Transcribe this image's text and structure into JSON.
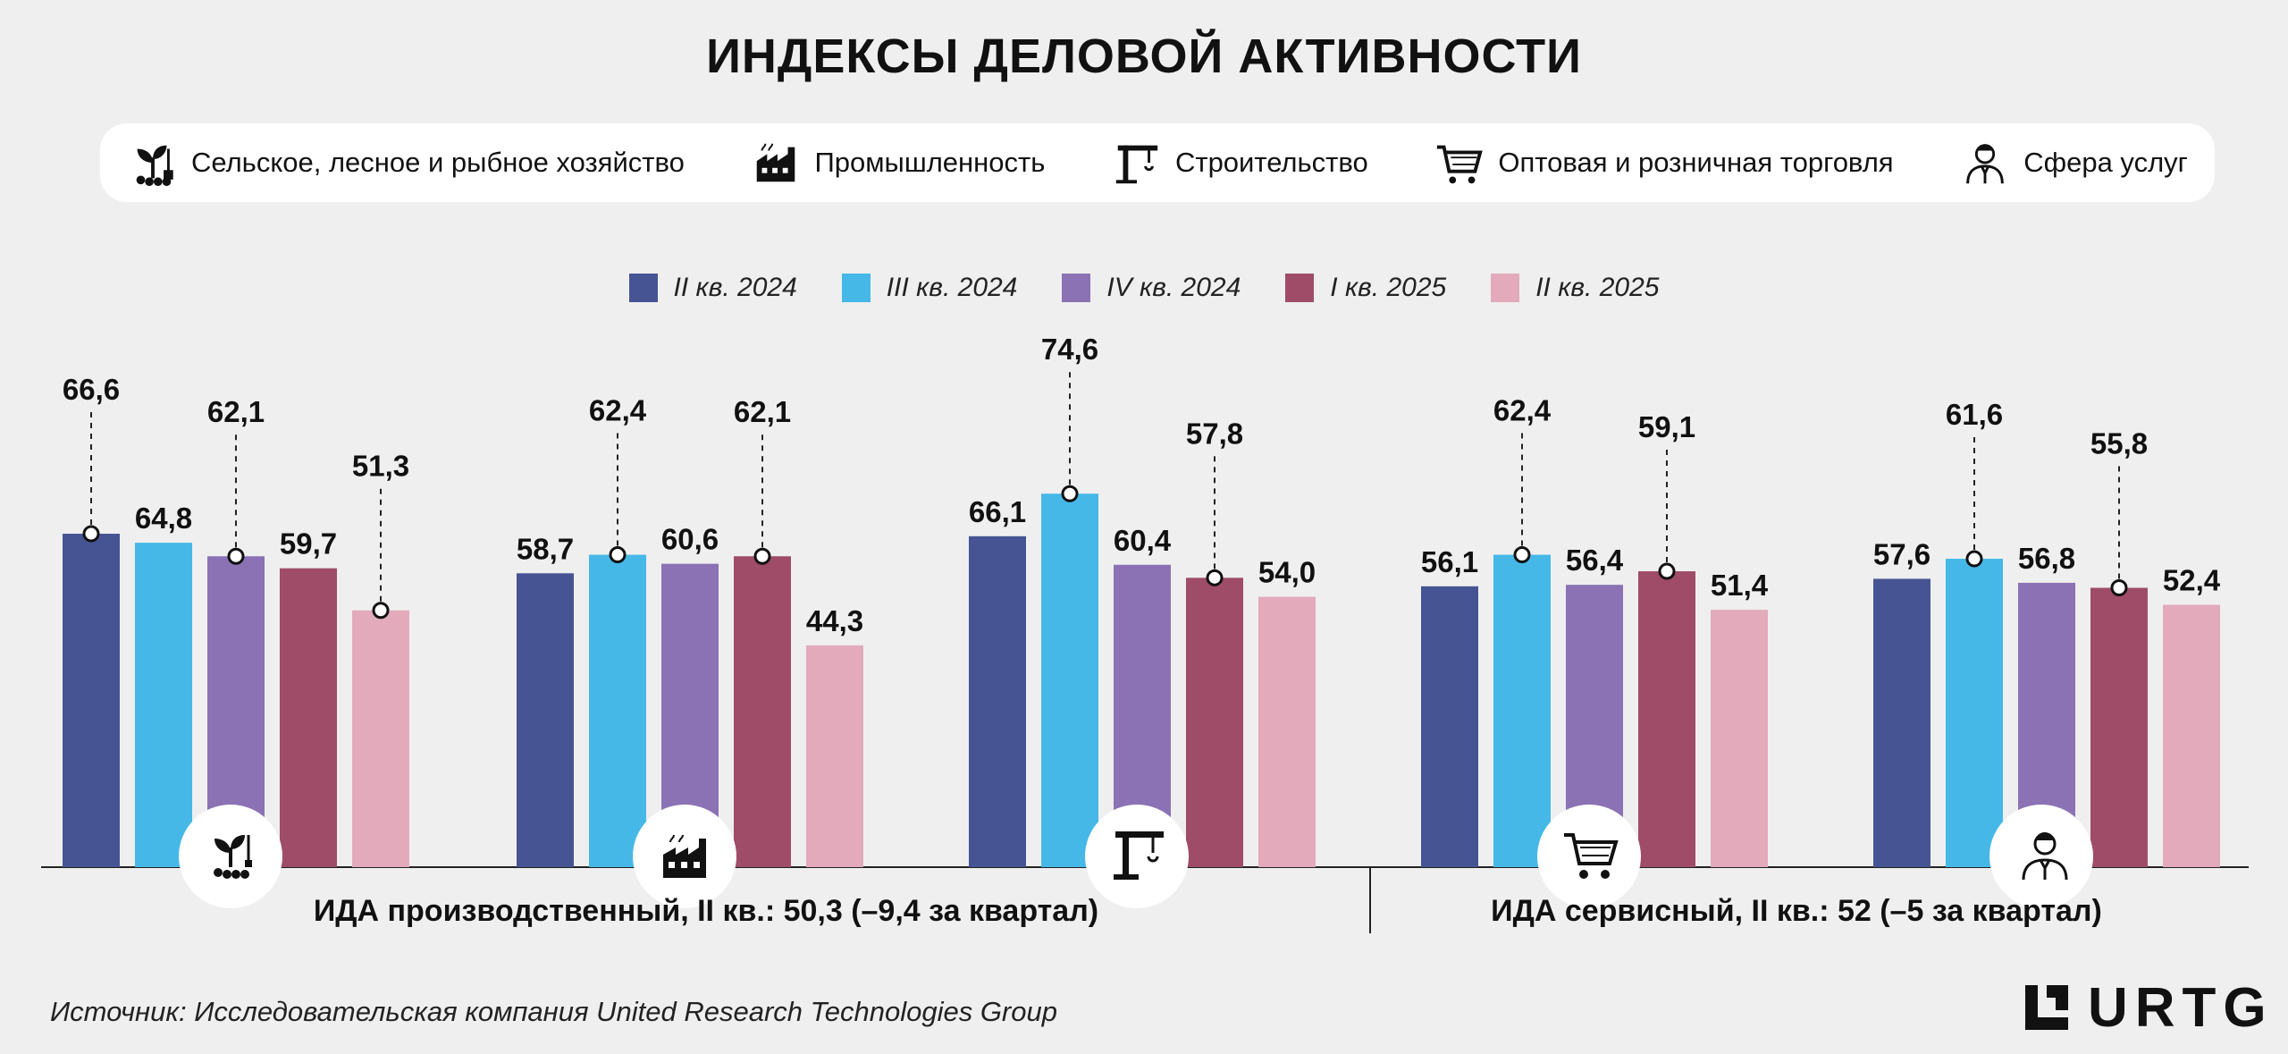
{
  "title": "ИНДЕКСЫ ДЕЛОВОЙ АКТИВНОСТИ",
  "sectors": [
    {
      "label": "Сельское, лесное и рыбное хозяйство",
      "icon": "plant-icon"
    },
    {
      "label": "Промышленность",
      "icon": "factory-icon"
    },
    {
      "label": "Строительство",
      "icon": "crane-icon"
    },
    {
      "label": "Оптовая и розничная торговля",
      "icon": "cart-icon"
    },
    {
      "label": "Сфера услуг",
      "icon": "worker-icon"
    }
  ],
  "chart_data": {
    "type": "bar",
    "categories": [
      "Сельское, лесное и рыбное хозяйство",
      "Промышленность",
      "Строительство",
      "Оптовая и розничная торговля",
      "Сфера услуг"
    ],
    "series": [
      {
        "name": "II кв. 2024",
        "color": "#465494",
        "values": [
          66.6,
          58.7,
          66.1,
          56.1,
          57.6
        ],
        "labels": [
          "66,6",
          "58,7",
          "66,1",
          "56,1",
          "57,6"
        ],
        "callout": [
          true,
          false,
          false,
          false,
          false
        ]
      },
      {
        "name": "III кв. 2024",
        "color": "#45b8e8",
        "values": [
          64.8,
          62.4,
          74.6,
          62.4,
          61.6
        ],
        "labels": [
          "64,8",
          "62,4",
          "74,6",
          "62,4",
          "61,6"
        ],
        "callout": [
          false,
          true,
          true,
          true,
          true
        ]
      },
      {
        "name": "IV кв. 2024",
        "color": "#8b72b5",
        "values": [
          62.1,
          60.6,
          60.4,
          56.4,
          56.8
        ],
        "labels": [
          "62,1",
          "60,6",
          "60,4",
          "56,4",
          "56,8"
        ],
        "callout": [
          true,
          false,
          false,
          false,
          false
        ]
      },
      {
        "name": "I кв. 2025",
        "color": "#9e4c67",
        "values": [
          59.7,
          62.1,
          57.8,
          59.1,
          55.8
        ],
        "labels": [
          "59,7",
          "62,1",
          "57,8",
          "59,1",
          "55,8"
        ],
        "callout": [
          false,
          true,
          true,
          true,
          true
        ]
      },
      {
        "name": "II кв. 2025",
        "color": "#e2aabb",
        "values": [
          51.3,
          44.3,
          54.0,
          51.4,
          52.4
        ],
        "labels": [
          "51,3",
          "44,3",
          "54,0",
          "51,4",
          "52,4"
        ],
        "callout": [
          true,
          false,
          false,
          false,
          false
        ]
      }
    ],
    "ylim": [
      0,
      80
    ],
    "grid": false,
    "legend": "top-center",
    "group_labels": [
      "ИДА производственный, II кв.: 50,3 (–9,4 за квартал)",
      "ИДА сервисный, II кв.: 52 (–5 за квартал)"
    ]
  },
  "source": "Источник: Исследовательская компания United Research Technologies Group",
  "logo": "URTG"
}
